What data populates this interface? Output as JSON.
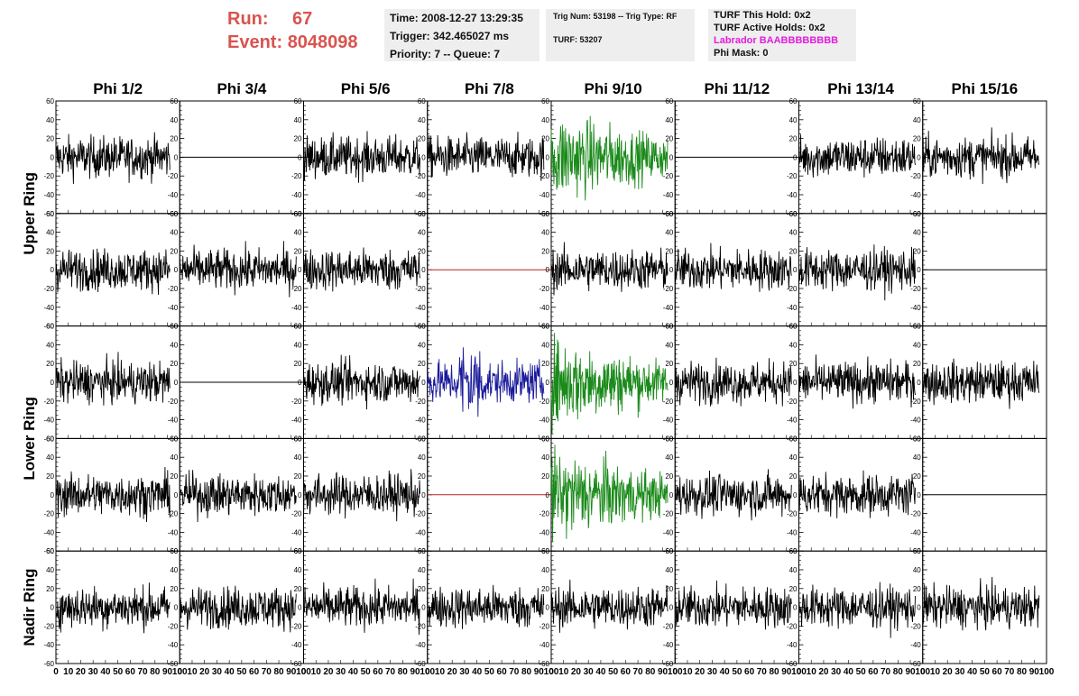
{
  "header": {
    "run_label": "Run:",
    "run_value": "67",
    "event_label": "Event:",
    "event_value": "8048098"
  },
  "time_box": {
    "time": "Time: 2008-12-27 13:29:35",
    "trigger": "Trigger: 342.465027 ms",
    "priority": "Priority: 7 -- Queue: 7"
  },
  "trig_box": {
    "trig": "Trig Num: 53198 -- Trig Type: RF",
    "turf": "TURF: 53207"
  },
  "turf_box": {
    "this_hold": "TURF This Hold: 0x2",
    "active_holds": "TURF Active Holds: 0x2",
    "labrador": "Labrador BAABBBBBBBB",
    "phi_mask": "Phi Mask: 0"
  },
  "chart_data": {
    "type": "line",
    "columns": [
      "Phi 1/2",
      "Phi 3/4",
      "Phi 5/6",
      "Phi 7/8",
      "Phi 9/10",
      "Phi 11/12",
      "Phi 13/14",
      "Phi 15/16"
    ],
    "row_labels": [
      "Upper Ring",
      "Lower Ring",
      "Nadir Ring"
    ],
    "xlim": [
      0,
      100
    ],
    "ylim": [
      -60,
      60
    ],
    "x_ticks": [
      "0",
      "10",
      "20",
      "30",
      "40",
      "50",
      "60",
      "70",
      "80",
      "90",
      "100"
    ],
    "y_ticks": [
      "60",
      "40",
      "20",
      "0",
      "-20",
      "-40",
      "-60"
    ],
    "colors": {
      "normal": "#000000",
      "triggered": "#1a8a1a",
      "blue": "#1a1a9a",
      "masked": "#b22222"
    },
    "panels": [
      [
        "noise",
        "flat",
        "noise",
        "noise",
        "triggered",
        "flat",
        "noise",
        "noise"
      ],
      [
        "noise",
        "noise",
        "noise",
        "masked",
        "noise",
        "noise",
        "noise",
        "flat"
      ],
      [
        "noise",
        "flat",
        "noise",
        "blue",
        "triggered",
        "noise",
        "noise",
        "noise"
      ],
      [
        "noise",
        "noise",
        "noise",
        "masked",
        "triggered",
        "noise",
        "noise",
        "flat"
      ],
      [
        "noise",
        "noise",
        "noise",
        "noise",
        "noise",
        "noise",
        "noise",
        "noise"
      ]
    ]
  }
}
